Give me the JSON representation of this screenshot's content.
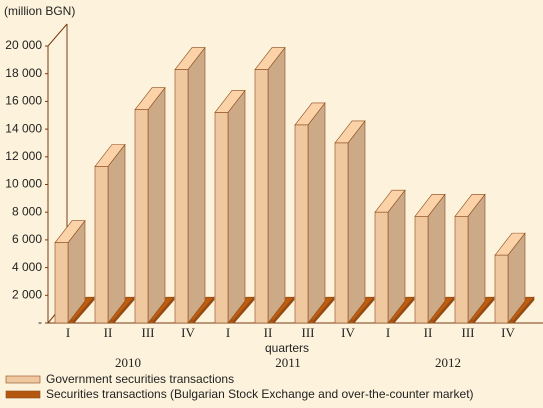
{
  "chart_data": {
    "type": "bar3d",
    "y_label": "(million BGN)",
    "x_label": "quarters",
    "categories": [
      "I",
      "II",
      "III",
      "IV",
      "I",
      "II",
      "III",
      "IV",
      "I",
      "II",
      "III",
      "IV"
    ],
    "years": [
      "2010",
      "2011",
      "2012"
    ],
    "series": [
      {
        "name": "Government securities transactions",
        "color": "#f0c8a0",
        "values": [
          5800,
          11300,
          15400,
          18300,
          15200,
          18300,
          14300,
          13000,
          8000,
          7700,
          7700,
          4900
        ]
      },
      {
        "name": "Securities transactions (Bulgarian Stock Exchange and over-the-counter market)",
        "color": "#b5580f",
        "values": [
          200,
          200,
          200,
          200,
          200,
          200,
          200,
          200,
          200,
          200,
          200,
          200
        ]
      }
    ],
    "ylim": [
      0,
      20000
    ],
    "yticks": [
      {
        "value": 0,
        "label": "-"
      },
      {
        "value": 2000,
        "label": "2 000"
      },
      {
        "value": 4000,
        "label": "4 000"
      },
      {
        "value": 6000,
        "label": "6 000"
      },
      {
        "value": 8000,
        "label": "8 000"
      },
      {
        "value": 10000,
        "label": "10 000"
      },
      {
        "value": 12000,
        "label": "12 000"
      },
      {
        "value": 14000,
        "label": "14 000"
      },
      {
        "value": 16000,
        "label": "16 000"
      },
      {
        "value": 18000,
        "label": "18 000"
      },
      {
        "value": 20000,
        "label": "20 000"
      }
    ]
  }
}
